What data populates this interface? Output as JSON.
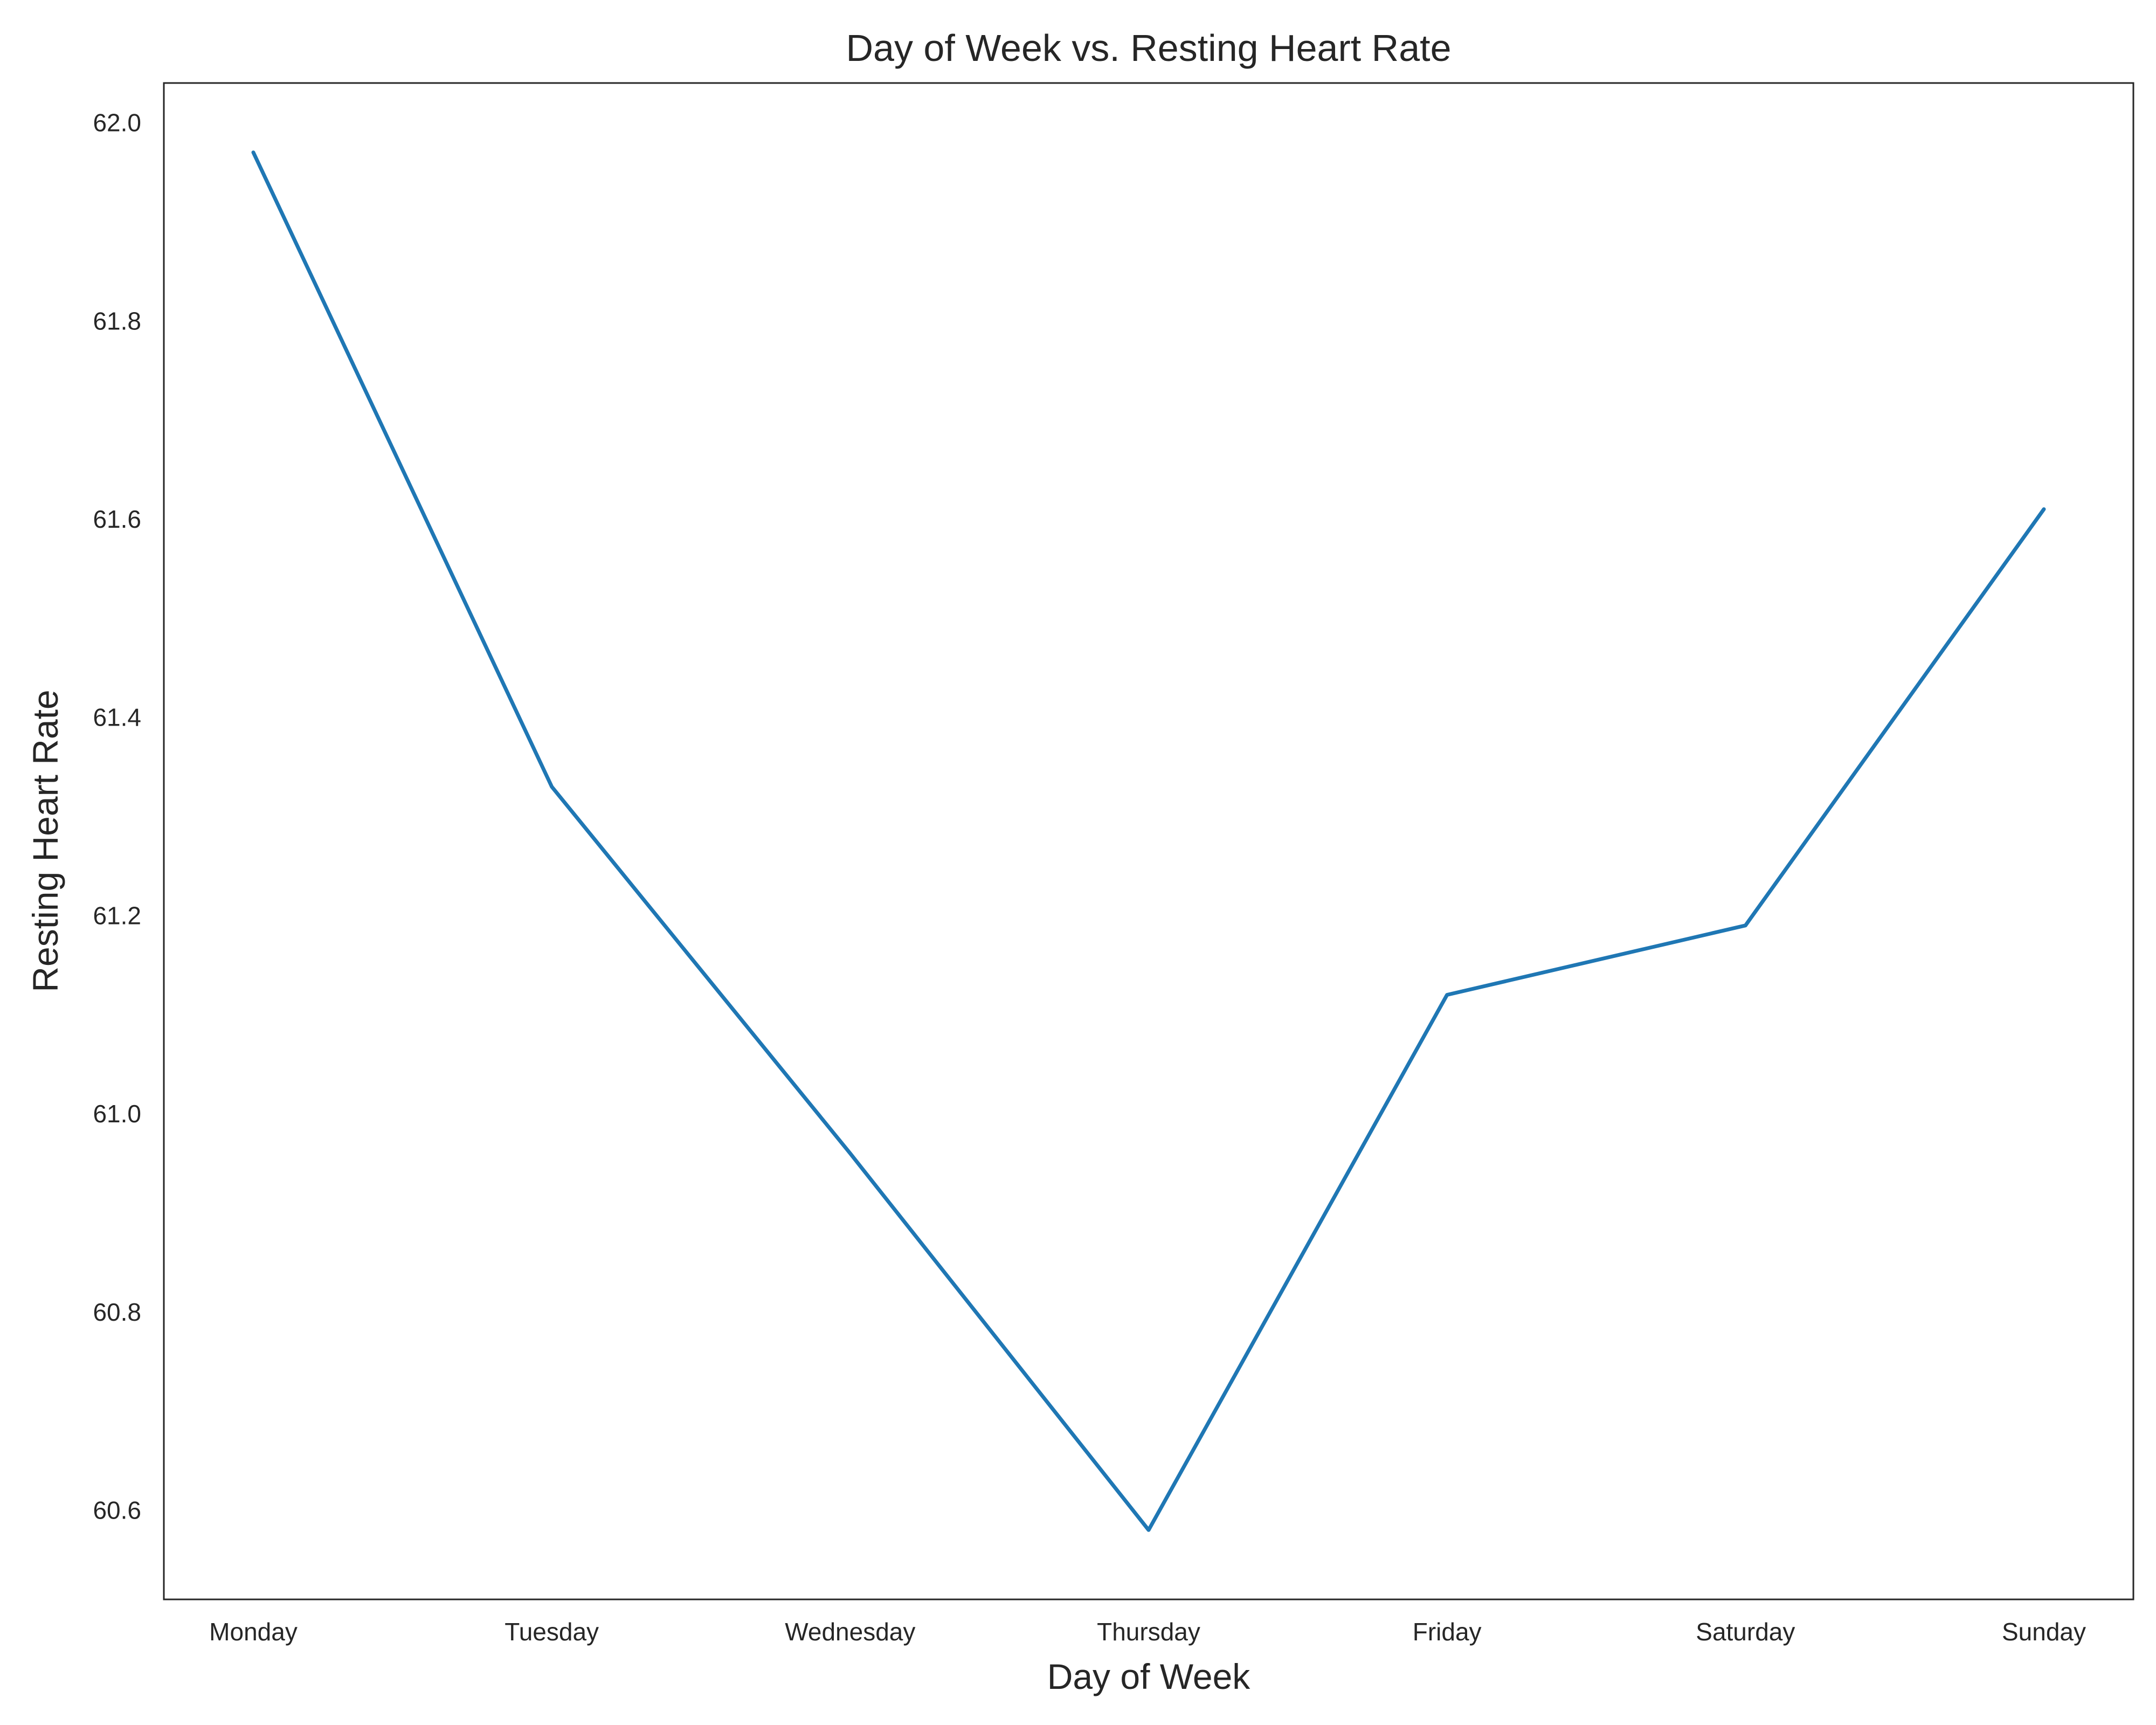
{
  "chart_data": {
    "type": "line",
    "title": "Day of Week vs. Resting Heart Rate",
    "xlabel": "Day of Week",
    "ylabel": "Resting Heart Rate",
    "categories": [
      "Monday",
      "Tuesday",
      "Wednesday",
      "Thursday",
      "Friday",
      "Saturday",
      "Sunday"
    ],
    "series": [
      {
        "values": [
          61.97,
          61.33,
          60.96,
          60.58,
          61.12,
          61.19,
          61.61
        ],
        "color": "#1f77b4"
      }
    ],
    "ylim": [
      60.51,
      62.04
    ],
    "yticks": [
      60.6,
      60.8,
      61.0,
      61.2,
      61.4,
      61.6,
      61.8,
      62.0
    ],
    "ytick_labels": [
      "60.6",
      "60.8",
      "61.0",
      "61.2",
      "61.4",
      "61.6",
      "61.8",
      "62.0"
    ],
    "grid": false,
    "legend": false
  }
}
